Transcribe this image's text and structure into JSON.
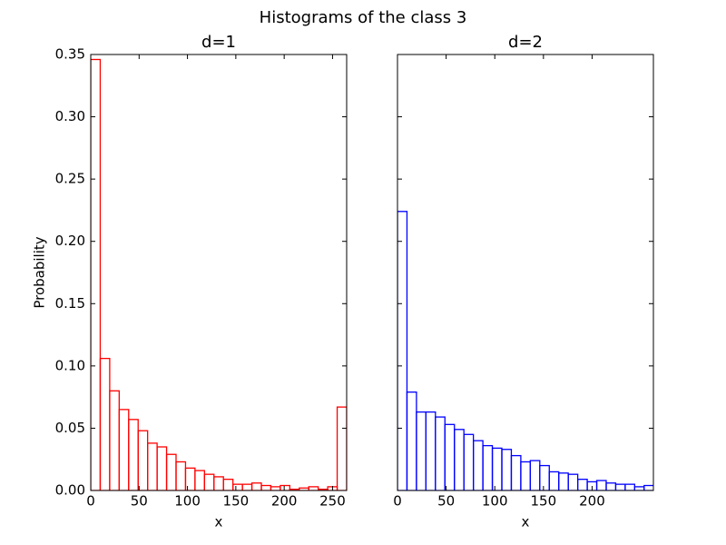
{
  "title": "Histograms of the class 3",
  "chart_data": [
    {
      "type": "histogram",
      "title": "d=1",
      "xlabel": "x",
      "ylabel": "Probability",
      "color": "#ff0000",
      "bins": [
        0,
        9.8,
        19.6,
        29.4,
        39.2,
        49,
        58.8,
        68.6,
        78.4,
        88.2,
        98,
        107.8,
        117.6,
        127.4,
        137.2,
        147,
        156.8,
        166.6,
        176.4,
        186.2,
        196,
        205.8,
        215.6,
        225.4,
        235.2,
        245,
        254.8,
        264.6
      ],
      "values": [
        0.346,
        0.106,
        0.08,
        0.065,
        0.057,
        0.048,
        0.038,
        0.035,
        0.029,
        0.023,
        0.018,
        0.016,
        0.013,
        0.011,
        0.009,
        0.005,
        0.005,
        0.006,
        0.004,
        0.003,
        0.004,
        0.001,
        0.002,
        0.003,
        0.001,
        0.003,
        0.067
      ],
      "xlim": [
        0,
        264.6
      ],
      "xticks": [
        0,
        50,
        100,
        150,
        200,
        250
      ],
      "ylim": [
        0,
        0.35
      ],
      "yticks": [
        {
          "value": 0,
          "label": "0.00"
        },
        {
          "value": 0.05,
          "label": "0.05"
        },
        {
          "value": 0.1,
          "label": "0.10"
        },
        {
          "value": 0.15,
          "label": "0.15"
        },
        {
          "value": 0.2,
          "label": "0.20"
        },
        {
          "value": 0.25,
          "label": "0.25"
        },
        {
          "value": 0.3,
          "label": "0.30"
        },
        {
          "value": 0.35,
          "label": "0.35"
        }
      ]
    },
    {
      "type": "histogram",
      "title": "d=2",
      "xlabel": "x",
      "color": "#0000ff",
      "bins": [
        0,
        9.75,
        19.5,
        29.25,
        39,
        48.75,
        58.5,
        68.25,
        78,
        87.75,
        97.5,
        107.25,
        117,
        126.75,
        136.5,
        146.25,
        156,
        165.75,
        175.5,
        185.25,
        195,
        204.75,
        214.5,
        224.25,
        234,
        243.75,
        253.5,
        263.25
      ],
      "values": [
        0.224,
        0.079,
        0.063,
        0.063,
        0.059,
        0.053,
        0.049,
        0.045,
        0.04,
        0.036,
        0.034,
        0.033,
        0.028,
        0.023,
        0.024,
        0.02,
        0.015,
        0.014,
        0.013,
        0.009,
        0.007,
        0.008,
        0.006,
        0.005,
        0.005,
        0.003,
        0.004
      ],
      "xlim": [
        0,
        263
      ],
      "xticks": [
        0,
        50,
        100,
        150,
        200
      ],
      "ylim": [
        0,
        0.35
      ],
      "yticks": [
        0,
        0.05,
        0.1,
        0.15,
        0.2,
        0.25,
        0.3,
        0.35
      ]
    }
  ]
}
